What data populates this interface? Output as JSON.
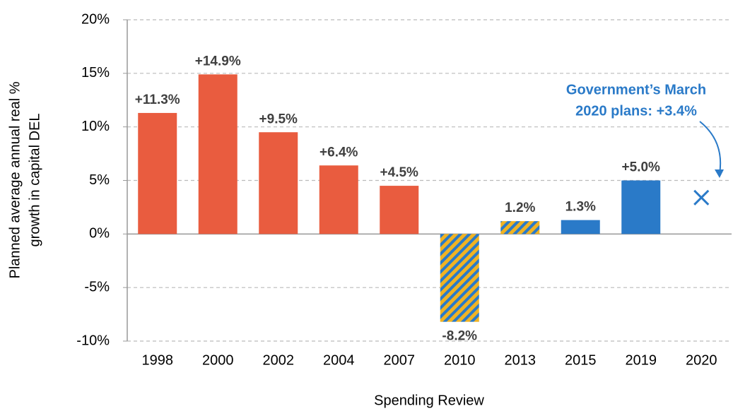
{
  "chart_data": {
    "type": "bar",
    "xlabel": "Spending Review",
    "ylabel": [
      "Planned average annual real %",
      "growth in capital DEL"
    ],
    "categories": [
      "1998",
      "2000",
      "2002",
      "2004",
      "2007",
      "2010",
      "2013",
      "2015",
      "2019",
      "2020"
    ],
    "values": [
      11.3,
      14.9,
      9.5,
      6.4,
      4.5,
      -8.2,
      1.2,
      1.3,
      5.0,
      null
    ],
    "value_labels": [
      "+11.3%",
      "+14.9%",
      "+9.5%",
      "+6.4%",
      "+4.5%",
      "-8.2%",
      "1.2%",
      "1.3%",
      "+5.0%",
      null
    ],
    "colors": [
      "#e95c3f",
      "#e95c3f",
      "#e95c3f",
      "#e95c3f",
      "#e95c3f",
      "#f0b323",
      "#f0b323",
      "#2a7ac8",
      "#2a7ac8",
      null
    ],
    "hatched": [
      false,
      false,
      false,
      false,
      false,
      true,
      true,
      false,
      false,
      false
    ],
    "hatch_color": "#2a7ac8",
    "ylim": [
      -10,
      20
    ],
    "yticks": [
      {
        "value": -10,
        "label": "-10%"
      },
      {
        "value": -5,
        "label": "-5%"
      },
      {
        "value": 0,
        "label": "0%"
      },
      {
        "value": 5,
        "label": "5%"
      },
      {
        "value": 10,
        "label": "10%"
      },
      {
        "value": 15,
        "label": "15%"
      },
      {
        "value": 20,
        "label": "20%"
      }
    ],
    "grid": true,
    "annotation": {
      "lines": [
        "Government’s March",
        "2020 plans: +3.4%"
      ],
      "value": 3.4,
      "category_index": 9,
      "color": "#2a7ac8"
    }
  }
}
